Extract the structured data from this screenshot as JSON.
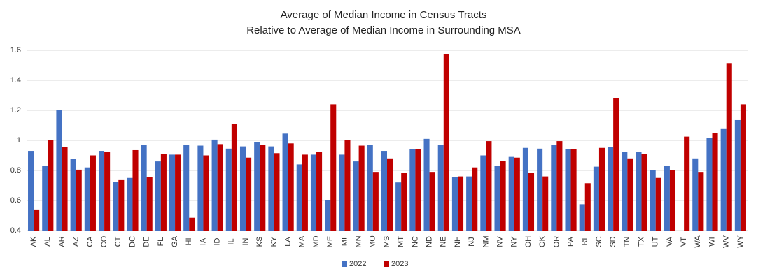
{
  "chart_data": {
    "type": "bar",
    "title": "Average of Median Income in Census Tracts",
    "subtitle": "Relative to Average of Median Income in Surrounding MSA",
    "categories": [
      "AK",
      "AL",
      "AR",
      "AZ",
      "CA",
      "CO",
      "CT",
      "DC",
      "DE",
      "FL",
      "GA",
      "HI",
      "IA",
      "ID",
      "IL",
      "IN",
      "KS",
      "KY",
      "LA",
      "MA",
      "MD",
      "ME",
      "MI",
      "MN",
      "MO",
      "MS",
      "MT",
      "NC",
      "ND",
      "NE",
      "NH",
      "NJ",
      "NM",
      "NV",
      "NY",
      "OH",
      "OK",
      "OR",
      "PA",
      "RI",
      "SC",
      "SD",
      "TN",
      "TX",
      "UT",
      "VA",
      "VT",
      "WA",
      "WI",
      "WV",
      "WY"
    ],
    "series": [
      {
        "name": "2022",
        "color": "#4472c4",
        "values": [
          0.93,
          0.83,
          1.2,
          0.875,
          0.82,
          0.93,
          0.725,
          0.75,
          0.97,
          0.86,
          0.905,
          0.97,
          0.965,
          1.005,
          0.945,
          0.96,
          0.99,
          0.96,
          1.045,
          0.84,
          0.905,
          0.6,
          0.905,
          0.86,
          0.97,
          0.93,
          0.72,
          0.94,
          1.01,
          0.97,
          0.755,
          0.76,
          0.9,
          0.83,
          0.89,
          0.95,
          0.945,
          0.97,
          0.94,
          0.575,
          0.825,
          0.955,
          0.925,
          0.925,
          0.8,
          0.83,
          null,
          0.88,
          1.015,
          1.08,
          1.135
        ]
      },
      {
        "name": "2023",
        "color": "#c00000",
        "values": [
          0.54,
          1.0,
          0.955,
          0.805,
          0.9,
          0.925,
          0.74,
          0.935,
          0.755,
          0.91,
          0.905,
          0.485,
          0.9,
          0.975,
          1.11,
          0.885,
          0.97,
          0.915,
          0.98,
          0.905,
          0.925,
          1.24,
          1.0,
          0.965,
          0.79,
          0.88,
          0.785,
          0.94,
          0.79,
          1.575,
          0.76,
          0.82,
          0.995,
          0.865,
          0.885,
          0.785,
          0.76,
          0.995,
          0.94,
          0.715,
          0.95,
          1.28,
          0.88,
          0.91,
          0.75,
          0.8,
          1.025,
          0.79,
          1.05,
          1.515,
          1.24
        ]
      }
    ],
    "ylim": [
      0.4,
      1.6
    ],
    "yticks": [
      0.4,
      0.6,
      0.8,
      1,
      1.2,
      1.4,
      1.6
    ],
    "grid": true,
    "legend": "bottom"
  }
}
